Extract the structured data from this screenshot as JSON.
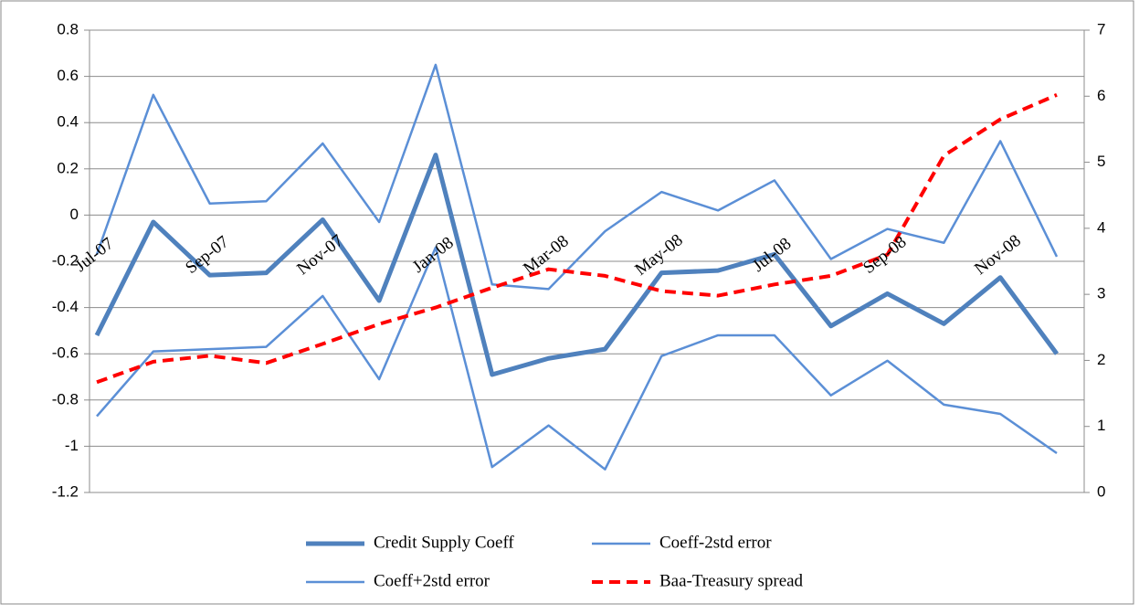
{
  "chart_data": {
    "type": "line",
    "categories": [
      "Jul-07",
      null,
      "Sep-07",
      null,
      "Nov-07",
      null,
      "Jan-08",
      null,
      "Mar-08",
      null,
      "May-08",
      null,
      "Jul-08",
      null,
      "Sep-08",
      null,
      "Nov-08",
      null
    ],
    "series": [
      {
        "name": "Credit Supply Coeff",
        "color": "#4f81bd",
        "width": 5,
        "values": [
          -0.52,
          -0.03,
          -0.26,
          -0.25,
          -0.02,
          -0.37,
          0.26,
          -0.69,
          -0.62,
          -0.58,
          -0.25,
          -0.24,
          -0.17,
          -0.48,
          -0.34,
          -0.47,
          -0.27,
          -0.6
        ]
      },
      {
        "name": "Coeff-2std error",
        "color": "#5b8fd6",
        "width": 2.5,
        "values": [
          -0.87,
          -0.59,
          -0.58,
          -0.57,
          -0.35,
          -0.71,
          -0.14,
          -1.09,
          -0.91,
          -1.1,
          -0.61,
          -0.52,
          -0.52,
          -0.78,
          -0.63,
          -0.82,
          -0.86,
          -1.03
        ]
      },
      {
        "name": "Coeff+2std error",
        "color": "#5b8fd6",
        "width": 2.5,
        "values": [
          -0.17,
          0.52,
          0.05,
          0.06,
          0.31,
          -0.03,
          0.65,
          -0.3,
          -0.32,
          -0.07,
          0.1,
          0.02,
          0.15,
          -0.19,
          -0.06,
          -0.12,
          0.32,
          -0.18
        ]
      },
      {
        "name": "Baa-Treasury spread",
        "color": "#ff0000",
        "width": 4,
        "dashed": true,
        "axis": "y2",
        "values": [
          1.67,
          1.98,
          2.07,
          1.96,
          2.25,
          2.55,
          2.8,
          3.1,
          3.38,
          3.28,
          3.05,
          2.98,
          3.15,
          3.28,
          3.6,
          5.1,
          5.65,
          6.02
        ]
      }
    ],
    "ylim": [
      -1.2,
      0.8
    ],
    "yticks": [
      -1.2,
      -1,
      -0.8,
      -0.6,
      -0.4,
      -0.2,
      0,
      0.2,
      0.4,
      0.6,
      0.8
    ],
    "y2lim": [
      0,
      7
    ],
    "y2ticks": [
      0,
      1,
      2,
      3,
      4,
      5,
      6,
      7
    ],
    "grid": true,
    "legend": "bottom"
  }
}
